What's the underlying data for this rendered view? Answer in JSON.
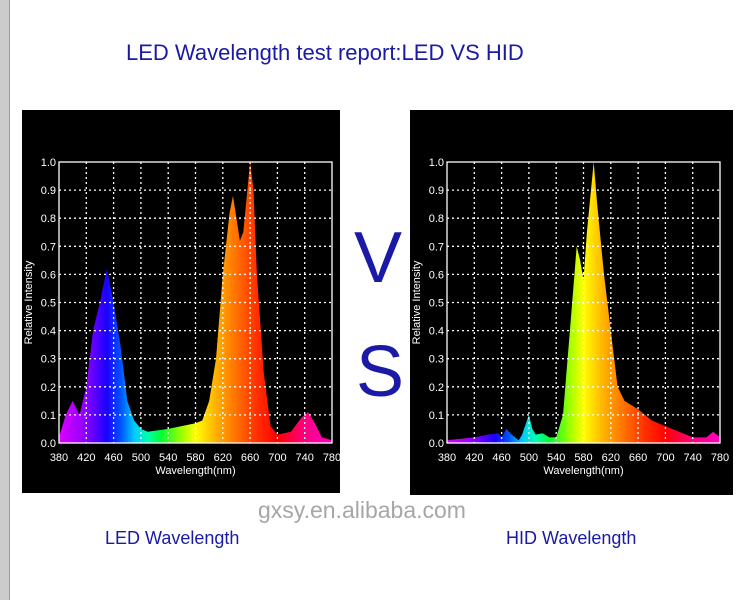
{
  "title": "LED Wavelength test report:LED VS HID",
  "vs": {
    "v": "V",
    "s": "S"
  },
  "watermark": "gxsy.en.alibaba.com",
  "captions": {
    "led": "LED Wavelength",
    "hid": "HID Wavelength"
  },
  "colors": {
    "text_blue": "#1a1aa6",
    "panel": "#000000",
    "grid": "#ffffff"
  },
  "chart_data": [
    {
      "type": "area",
      "title": "LED Wavelength",
      "xlabel": "Wavelength(nm)",
      "ylabel": "Relative Intensity",
      "xlim": [
        380,
        780
      ],
      "ylim": [
        0,
        1
      ],
      "grid": true,
      "xticks": [
        "380",
        "420",
        "460",
        "500",
        "540",
        "580",
        "620",
        "660",
        "700",
        "740",
        "780"
      ],
      "yticks": [
        "0.0",
        "0.1",
        "0.2",
        "0.3",
        "0.4",
        "0.5",
        "0.6",
        "0.7",
        "0.8",
        "0.9",
        "1.0"
      ],
      "x": [
        380,
        390,
        400,
        410,
        420,
        430,
        440,
        450,
        460,
        470,
        480,
        490,
        500,
        510,
        540,
        580,
        590,
        600,
        610,
        620,
        630,
        635,
        645,
        650,
        660,
        665,
        670,
        680,
        690,
        700,
        720,
        735,
        745,
        755,
        765,
        780
      ],
      "y": [
        0.02,
        0.1,
        0.15,
        0.1,
        0.2,
        0.4,
        0.5,
        0.62,
        0.5,
        0.35,
        0.15,
        0.08,
        0.05,
        0.04,
        0.05,
        0.07,
        0.08,
        0.15,
        0.3,
        0.6,
        0.82,
        0.88,
        0.72,
        0.75,
        1.0,
        0.9,
        0.6,
        0.25,
        0.06,
        0.03,
        0.04,
        0.09,
        0.11,
        0.07,
        0.02,
        0.01
      ]
    },
    {
      "type": "area",
      "title": "HID Wavelength",
      "xlabel": "Wavelength(nm)",
      "ylabel": "Relative Intensity",
      "xlim": [
        380,
        780
      ],
      "ylim": [
        0,
        1
      ],
      "grid": true,
      "xticks": [
        "380",
        "420",
        "460",
        "500",
        "540",
        "580",
        "620",
        "660",
        "700",
        "740",
        "780"
      ],
      "yticks": [
        "0.0",
        "0.1",
        "0.2",
        "0.3",
        "0.4",
        "0.5",
        "0.6",
        "0.7",
        "0.8",
        "0.9",
        "1.0"
      ],
      "x": [
        380,
        420,
        440,
        455,
        460,
        467,
        475,
        485,
        490,
        500,
        505,
        510,
        520,
        530,
        540,
        550,
        560,
        570,
        575,
        580,
        585,
        595,
        600,
        610,
        620,
        630,
        640,
        660,
        680,
        700,
        740,
        760,
        770,
        780
      ],
      "y": [
        0.01,
        0.02,
        0.03,
        0.035,
        0.02,
        0.05,
        0.03,
        0.01,
        0.03,
        0.1,
        0.05,
        0.03,
        0.035,
        0.02,
        0.02,
        0.1,
        0.4,
        0.7,
        0.65,
        0.58,
        0.75,
        1.0,
        0.85,
        0.6,
        0.4,
        0.2,
        0.15,
        0.12,
        0.08,
        0.06,
        0.02,
        0.02,
        0.04,
        0.02
      ]
    }
  ]
}
